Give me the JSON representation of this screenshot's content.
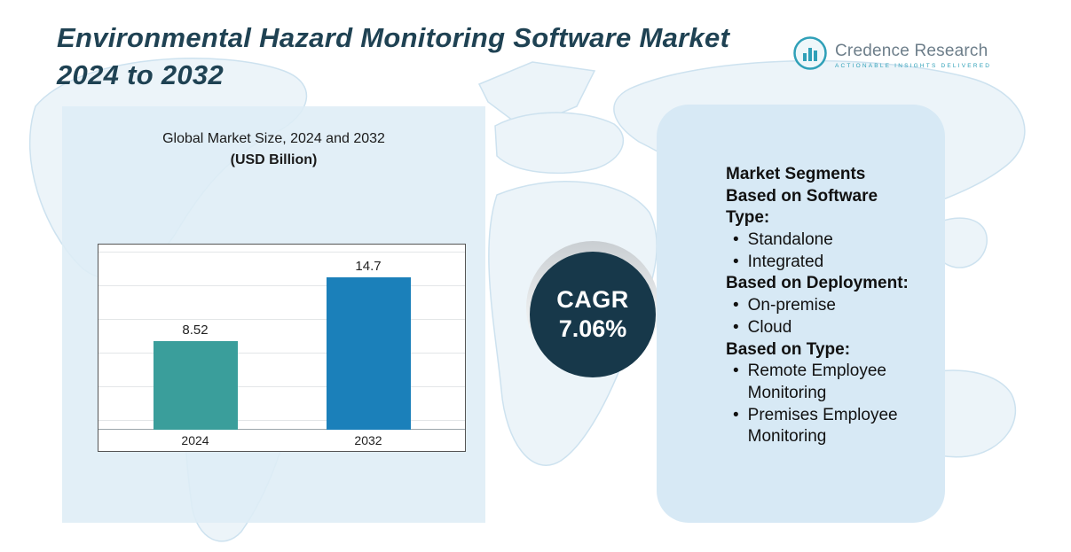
{
  "title": "Environmental Hazard Monitoring Software Market 2024 to 2032",
  "logo": {
    "name": "Credence Research",
    "tagline": "Actionable Insights Delivered"
  },
  "chart_panel": {
    "subtitle_line1": "Global Market Size, 2024 and 2032",
    "subtitle_line2": "(USD Billion)"
  },
  "chart_data": {
    "type": "bar",
    "title": "Global Market Size, 2024 and 2032 (USD Billion)",
    "categories": [
      "2024",
      "2032"
    ],
    "values": [
      8.52,
      14.7
    ],
    "value_labels": [
      "8.52",
      "14.7"
    ],
    "bar_colors": [
      "#3a9e9b",
      "#1b80ba"
    ],
    "xlabel": "",
    "ylabel": "USD Billion",
    "ylim": [
      0,
      16
    ],
    "grid": true,
    "legend": false
  },
  "cagr_badge": {
    "label": "CAGR",
    "value": "7.06%"
  },
  "segments_panel": {
    "heading": "Market Segments",
    "groups": [
      {
        "label": "Based on Software Type:",
        "items": [
          "Standalone",
          "Integrated"
        ]
      },
      {
        "label": "Based on Deployment:",
        "items": [
          "On-premise",
          "Cloud"
        ]
      },
      {
        "label": "Based on Type:",
        "items": [
          "Remote Employee Monitoring",
          "Premises Employee Monitoring"
        ]
      }
    ]
  },
  "colors": {
    "title_text": "#1f4253",
    "panel_bg": "#d7e9f5",
    "bar_2024": "#3a9e9b",
    "bar_2032": "#1b80ba",
    "cagr_bg": "#17384a",
    "logo_accent": "#2fa0b8"
  }
}
